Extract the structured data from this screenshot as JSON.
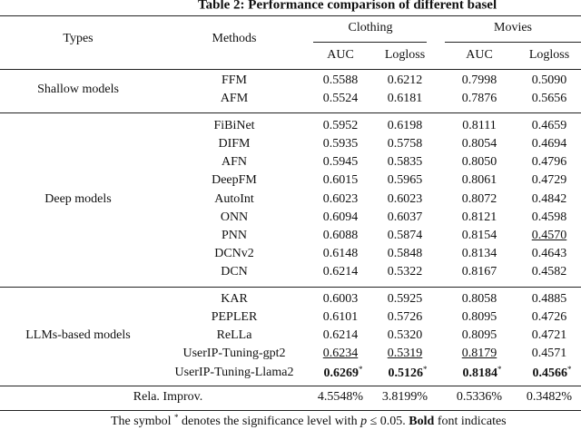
{
  "caption": "Table 2: Performance comparison of different basel",
  "header": {
    "types": "Types",
    "methods": "Methods",
    "datasets": [
      "Clothing",
      "Movies"
    ],
    "metrics": [
      "AUC",
      "Logloss",
      "AUC",
      "Logloss"
    ]
  },
  "groups": [
    {
      "type": "Shallow models",
      "rows": [
        [
          "FFM",
          "0.5588",
          "0.6212",
          "0.7998",
          "0.5090"
        ],
        [
          "AFM",
          "0.5524",
          "0.6181",
          "0.7876",
          "0.5656"
        ]
      ]
    },
    {
      "type": "Deep models",
      "rows": [
        [
          "FiBiNet",
          "0.5952",
          "0.6198",
          "0.8111",
          "0.4659"
        ],
        [
          "DIFM",
          "0.5935",
          "0.5758",
          "0.8054",
          "0.4694"
        ],
        [
          "AFN",
          "0.5945",
          "0.5835",
          "0.8050",
          "0.4796"
        ],
        [
          "DeepFM",
          "0.6015",
          "0.5965",
          "0.8061",
          "0.4729"
        ],
        [
          "AutoInt",
          "0.6023",
          "0.6023",
          "0.8072",
          "0.4842"
        ],
        [
          "ONN",
          "0.6094",
          "0.6037",
          "0.8121",
          "0.4598"
        ],
        [
          "PNN",
          "0.6088",
          "0.5874",
          "0.8154",
          {
            "text": "0.4570",
            "underline": true
          }
        ],
        [
          "DCNv2",
          "0.6148",
          "0.5848",
          "0.8134",
          "0.4643"
        ],
        [
          "DCN",
          "0.6214",
          "0.5322",
          "0.8167",
          "0.4582"
        ]
      ]
    },
    {
      "type": "LLMs-based models",
      "rows": [
        [
          "KAR",
          "0.6003",
          "0.5925",
          "0.8058",
          "0.4885"
        ],
        [
          "PEPLER",
          "0.6101",
          "0.5726",
          "0.8095",
          "0.4726"
        ],
        [
          "ReLLa",
          "0.6214",
          "0.5320",
          "0.8095",
          "0.4721"
        ],
        [
          "UserIP-Tuning-gpt2",
          {
            "text": "0.6234",
            "underline": true
          },
          {
            "text": "0.5319",
            "underline": true
          },
          {
            "text": "0.8179",
            "underline": true
          },
          "0.4571"
        ],
        [
          "UserIP-Tuning-Llama2",
          {
            "text": "0.6269",
            "bold": true,
            "sup": "*"
          },
          {
            "text": "0.5126",
            "bold": true,
            "sup": "*"
          },
          {
            "text": "0.8184",
            "bold": true,
            "sup": "*"
          },
          {
            "text": "0.4566",
            "bold": true,
            "sup": "*"
          }
        ]
      ]
    }
  ],
  "improvement": {
    "label": "Rela. Improv.",
    "values": [
      "4.5548%",
      "3.8199%",
      "0.5336%",
      "0.3482%"
    ]
  },
  "footnote": [
    {
      "text": "The symbol "
    },
    {
      "text": "*",
      "sup": true
    },
    {
      "text": " denotes the significance level with "
    },
    {
      "text": "p",
      "italic": true
    },
    {
      "text": " ≤ 0.05. "
    },
    {
      "text": "Bold",
      "bold": true
    },
    {
      "text": " font indicates"
    }
  ]
}
